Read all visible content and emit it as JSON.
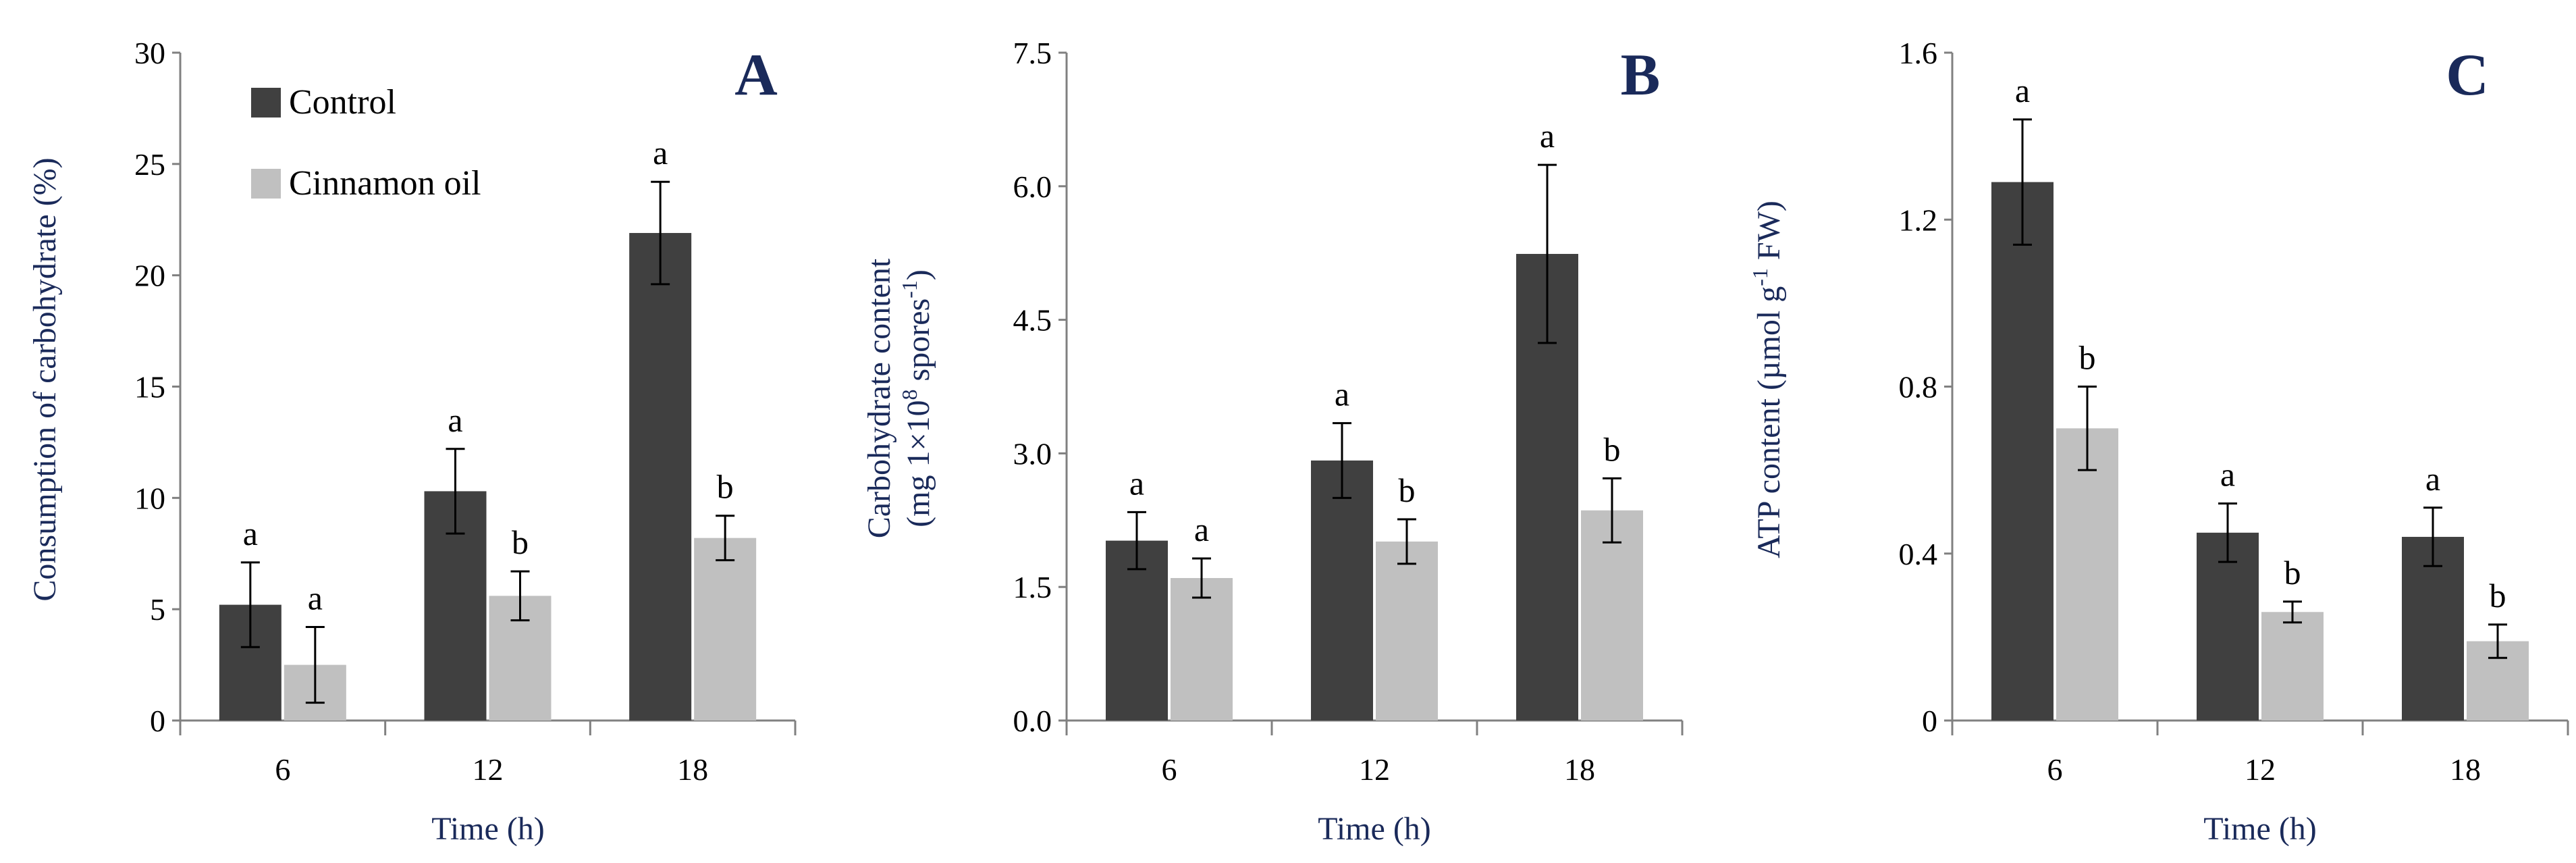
{
  "colors": {
    "control": "#404040",
    "cinnamon": "#c0c0c0",
    "axis": "#808080",
    "label": "#1a2a5a",
    "error_bar": "#000000"
  },
  "legend": {
    "items": [
      {
        "name": "Control",
        "color": "#404040"
      },
      {
        "name": "Cinnamon oil",
        "color": "#c0c0c0"
      }
    ]
  },
  "chart_data": [
    {
      "type": "bar",
      "panel": "A",
      "title": "",
      "xlabel": "Time (h)",
      "ylabel": "Consumption of carbohydrate (%)",
      "ylim": [
        0,
        30
      ],
      "yticks": [
        0,
        5,
        10,
        15,
        20,
        25,
        30
      ],
      "ytick_labels": [
        "0",
        "5",
        "10",
        "15",
        "20",
        "25",
        "30"
      ],
      "categories": [
        "6",
        "12",
        "18"
      ],
      "legend_position": "top-left",
      "series": [
        {
          "name": "Control",
          "values": [
            5.2,
            10.3,
            21.9
          ],
          "errors": [
            1.9,
            1.9,
            2.3
          ],
          "significance": [
            "a",
            "a",
            "a"
          ]
        },
        {
          "name": "Cinnamon oil",
          "values": [
            2.5,
            5.6,
            8.2
          ],
          "errors": [
            1.7,
            1.1,
            1.0
          ],
          "significance": [
            "a",
            "b",
            "b"
          ]
        }
      ]
    },
    {
      "type": "bar",
      "panel": "B",
      "title": "",
      "xlabel": "Time (h)",
      "ylabel_line1": "Carbohydrate content",
      "ylabel_line2_pre": "(mg 1×10",
      "ylabel_line2_sup": "8",
      "ylabel_line2_mid": " spores",
      "ylabel_line2_sup2": "-1",
      "ylabel_line2_post": ")",
      "ylim": [
        0,
        7.5
      ],
      "yticks": [
        0,
        1.5,
        3.0,
        4.5,
        6.0,
        7.5
      ],
      "ytick_labels": [
        "0.0",
        "1.5",
        "3.0",
        "4.5",
        "6.0",
        "7.5"
      ],
      "categories": [
        "6",
        "12",
        "18"
      ],
      "series": [
        {
          "name": "Control",
          "values": [
            2.02,
            2.92,
            5.24
          ],
          "errors": [
            0.32,
            0.42,
            1.0
          ],
          "significance": [
            "a",
            "a",
            "a"
          ]
        },
        {
          "name": "Cinnamon oil",
          "values": [
            1.6,
            2.01,
            2.36
          ],
          "errors": [
            0.22,
            0.25,
            0.36
          ],
          "significance": [
            "a",
            "b",
            "b"
          ]
        }
      ]
    },
    {
      "type": "bar",
      "panel": "C",
      "title": "",
      "xlabel": "Time (h)",
      "ylabel_pre": "ATP content  (µmol g",
      "ylabel_sup": "-1",
      "ylabel_post": " FW)",
      "ylim": [
        0,
        1.6
      ],
      "yticks": [
        0,
        0.4,
        0.8,
        1.2,
        1.6
      ],
      "ytick_labels": [
        "0",
        "0.4",
        "0.8",
        "1.2",
        "1.6"
      ],
      "categories": [
        "6",
        "12",
        "18"
      ],
      "series": [
        {
          "name": "Control",
          "values": [
            1.29,
            0.45,
            0.44
          ],
          "errors": [
            0.15,
            0.07,
            0.07
          ],
          "significance": [
            "a",
            "a",
            "a"
          ]
        },
        {
          "name": "Cinnamon oil",
          "values": [
            0.7,
            0.26,
            0.19
          ],
          "errors": [
            0.1,
            0.025,
            0.04
          ],
          "significance": [
            "b",
            "b",
            "b"
          ]
        }
      ]
    }
  ]
}
